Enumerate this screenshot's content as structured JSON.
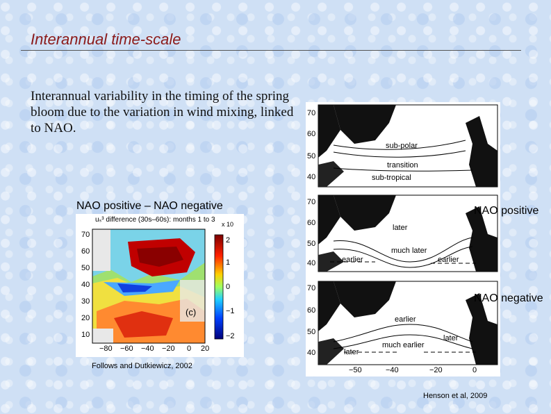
{
  "slide": {
    "title": "Interannual time-scale",
    "body": "Interannual variability in the timing of the spring bloom due to the variation in wind mixing, linked to NAO."
  },
  "left_figure": {
    "label": "NAO positive – NAO negative",
    "plot_title": "uₛ³ difference (30s–60s): months 1 to 3",
    "scale_note": "x 10",
    "panel_tag": "(c)",
    "y_ticks": [
      "70",
      "60",
      "50",
      "40",
      "30",
      "20",
      "10"
    ],
    "x_ticks": [
      "−80",
      "−60",
      "−40",
      "−20",
      "0",
      "20"
    ],
    "colorbar_ticks": [
      "2",
      "1",
      "0",
      "−1",
      "−2"
    ],
    "citation": "Follows and Dutkiewicz, 2002"
  },
  "right_figure": {
    "maps": [
      {
        "regions": [
          "sub-polar",
          "transition",
          "sub-tropical"
        ],
        "y_ticks": [
          "70",
          "60",
          "50",
          "40"
        ]
      },
      {
        "label": "NAO positive",
        "regions": [
          "later",
          "much later",
          "earlier",
          "earlier"
        ],
        "y_ticks": [
          "70",
          "60",
          "50",
          "40"
        ]
      },
      {
        "label": "NAO negative",
        "regions": [
          "earlier",
          "much earlier",
          "later",
          "later"
        ],
        "y_ticks": [
          "70",
          "60",
          "50",
          "40"
        ],
        "x_ticks": [
          "−50",
          "−40",
          "−20",
          "0"
        ]
      }
    ],
    "citation": "Henson et al, 2009"
  }
}
